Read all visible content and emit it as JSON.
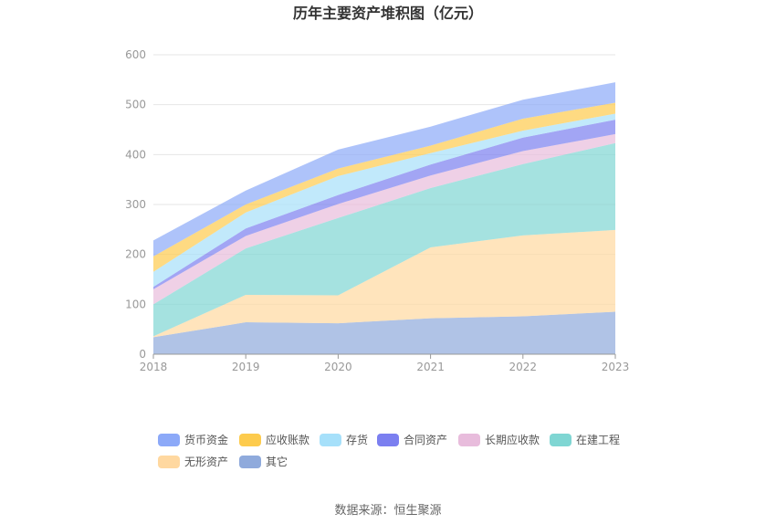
{
  "chart_data": {
    "type": "area",
    "stacked": true,
    "title": "历年主要资产堆积图（亿元）",
    "xlabel": "",
    "ylabel": "",
    "categories": [
      "2018",
      "2019",
      "2020",
      "2021",
      "2022",
      "2023"
    ],
    "ylim": [
      0,
      600
    ],
    "yticks": [
      0,
      100,
      200,
      300,
      400,
      500,
      600
    ],
    "grid": true,
    "legend_position": "bottom",
    "series": [
      {
        "name": "其它",
        "color": "#8FAADC",
        "values": [
          34,
          64,
          62,
          72,
          76,
          85
        ]
      },
      {
        "name": "无形资产",
        "color": "#FFD8A0",
        "values": [
          2,
          55,
          56,
          142,
          162,
          164
        ]
      },
      {
        "name": "在建工程",
        "color": "#7FD6D3",
        "values": [
          64,
          93,
          155,
          119,
          143,
          174
        ]
      },
      {
        "name": "长期应收款",
        "color": "#E8BCDC",
        "values": [
          30,
          25,
          28,
          25,
          26,
          18
        ]
      },
      {
        "name": "合同资产",
        "color": "#7B7FF0",
        "values": [
          5,
          15,
          18,
          22,
          27,
          29
        ]
      },
      {
        "name": "存货",
        "color": "#A6E0FA",
        "values": [
          30,
          32,
          38,
          23,
          14,
          12
        ]
      },
      {
        "name": "应收账款",
        "color": "#FDCB4D",
        "values": [
          31,
          16,
          15,
          15,
          24,
          22
        ]
      },
      {
        "name": "货币资金",
        "color": "#8CA9F8",
        "values": [
          32,
          28,
          38,
          38,
          38,
          41
        ]
      }
    ]
  },
  "legend_order": [
    "货币资金",
    "应收账款",
    "存货",
    "合同资产",
    "长期应收款",
    "在建工程",
    "无形资产",
    "其它"
  ],
  "source_text": "数据来源：恒生聚源"
}
